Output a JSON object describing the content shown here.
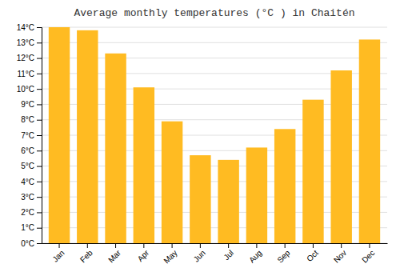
{
  "chart_data": {
    "type": "bar",
    "title": "Average monthly temperatures (°C ) in Chaitén",
    "categories": [
      "Jan",
      "Feb",
      "Mar",
      "Apr",
      "May",
      "Jun",
      "Jul",
      "Aug",
      "Sep",
      "Oct",
      "Nov",
      "Dec"
    ],
    "values": [
      14.0,
      13.8,
      12.3,
      10.1,
      7.9,
      5.7,
      5.4,
      6.2,
      7.4,
      9.3,
      11.2,
      13.2
    ],
    "color": "#FFBB22",
    "ylim": [
      0,
      14
    ],
    "yticks": [
      {
        "value": 0,
        "label": "0°C"
      },
      {
        "value": 1,
        "label": "1°C"
      },
      {
        "value": 2,
        "label": "2°C"
      },
      {
        "value": 3,
        "label": "3°C"
      },
      {
        "value": 4,
        "label": "4°C"
      },
      {
        "value": 5,
        "label": "5°C"
      },
      {
        "value": 6,
        "label": "6°C"
      },
      {
        "value": 7,
        "label": "7°C"
      },
      {
        "value": 8,
        "label": "8°C"
      },
      {
        "value": 9,
        "label": "9°C"
      },
      {
        "value": 10,
        "label": "10°C"
      },
      {
        "value": 11,
        "label": "11°C"
      },
      {
        "value": 12,
        "label": "12°C"
      },
      {
        "value": 13,
        "label": "13°C"
      },
      {
        "value": 14,
        "label": "14°C"
      }
    ],
    "grid": true
  }
}
